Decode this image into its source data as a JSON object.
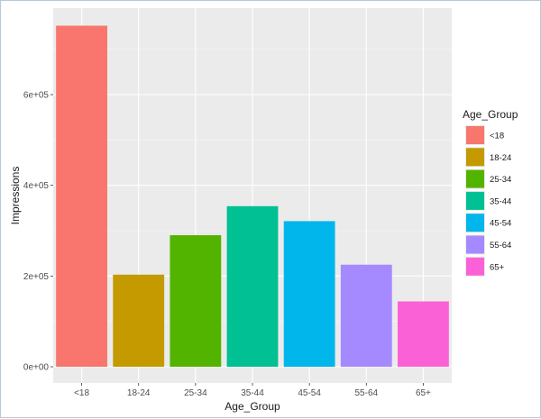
{
  "chart_data": {
    "type": "bar",
    "title": "",
    "xlabel": "Age_Group",
    "ylabel": "Impressions",
    "categories": [
      "<18",
      "18-24",
      "25-34",
      "35-44",
      "45-54",
      "55-64",
      "65+"
    ],
    "values": [
      752000,
      203000,
      290000,
      354000,
      321000,
      225000,
      144000
    ],
    "colors": [
      "#F8766D",
      "#C49A00",
      "#53B400",
      "#00C094",
      "#00B6EB",
      "#A58AFF",
      "#FB61D7"
    ],
    "yticks": [
      0,
      200000,
      400000,
      600000
    ],
    "ytick_labels": [
      "0e+00",
      "2e+05",
      "4e+05",
      "6e+05"
    ],
    "ylim": [
      0,
      790000
    ],
    "grid": true,
    "background": "#EBEBEB",
    "legend": {
      "title": "Age_Group",
      "position": "right",
      "entries": [
        "<18",
        "18-24",
        "25-34",
        "35-44",
        "45-54",
        "55-64",
        "65+"
      ]
    }
  }
}
